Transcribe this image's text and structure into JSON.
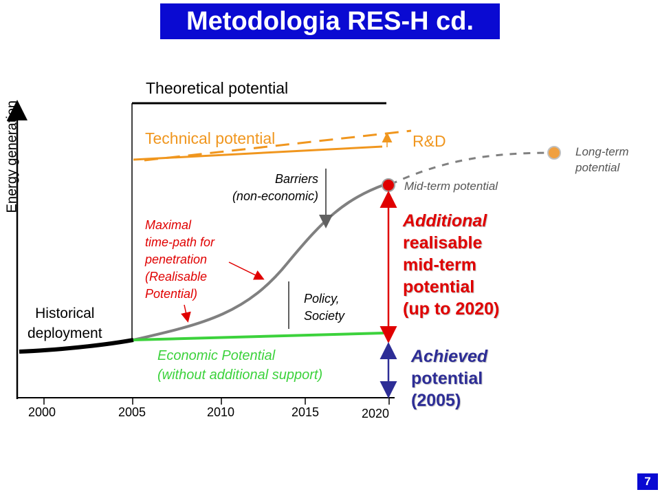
{
  "title": "Metodologia RES-H cd.",
  "page_number": "7",
  "axis": {
    "y_label": "Energy generation",
    "x_ticks": [
      "2000",
      "2005",
      "2010",
      "2015",
      "2020"
    ]
  },
  "labels": {
    "theoretical": "Theoretical potential",
    "technical": "Technical potential",
    "rd": "R&D",
    "barriers": [
      "Barriers",
      "(non-economic)"
    ],
    "maximal": [
      "Maximal",
      "time-path for",
      "penetration",
      "(Realisable",
      "Potential)"
    ],
    "policy": [
      "Policy,",
      "Society"
    ],
    "historical": [
      "Historical",
      "deployment"
    ],
    "economic": [
      "Economic Potential",
      "(without additional support)"
    ],
    "mid_term": "Mid-term potential",
    "long_term": [
      "Long-term",
      "potential"
    ],
    "additional": [
      "Additional",
      "realisable",
      "mid-term",
      "potential",
      "(up to 2020)"
    ],
    "achieved": [
      "Achieved",
      "potential",
      "(2005)"
    ]
  },
  "colors": {
    "title_bg": "#0a0ad2",
    "technical": "#f0961e",
    "economic": "#3cd23c",
    "realisable": "#e00000",
    "achieved": "#2d2d96",
    "long_term_path": "#808080"
  }
}
